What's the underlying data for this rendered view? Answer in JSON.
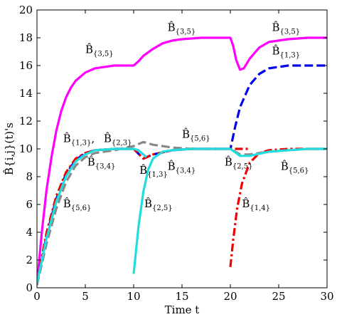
{
  "chart_data": {
    "type": "line",
    "title": "",
    "xlabel": "Time t",
    "ylabel": "B̂{i,j}(t)'s",
    "xlim": [
      0,
      30
    ],
    "ylim": [
      0,
      20
    ],
    "x_ticks": [
      0,
      5,
      10,
      15,
      20,
      25,
      30
    ],
    "y_ticks": [
      0,
      2,
      4,
      6,
      8,
      10,
      12,
      14,
      16,
      18,
      20
    ],
    "grid": false,
    "legend": "none",
    "series": [
      {
        "color": "#ff00ff",
        "style": "solid",
        "x": [
          0,
          0.5,
          1,
          1.5,
          2,
          2.5,
          3,
          3.5,
          4,
          5,
          6,
          7,
          8,
          9,
          10,
          10.5,
          11,
          12,
          13,
          14,
          15,
          17,
          19,
          20,
          20.3,
          20.6,
          21,
          21.4,
          22,
          23,
          24,
          26,
          28,
          30
        ],
        "y": [
          0.2,
          4.0,
          7.1,
          9.4,
          11.3,
          12.7,
          13.7,
          14.4,
          14.9,
          15.5,
          15.8,
          15.9,
          16.0,
          16.0,
          16.0,
          16.3,
          16.7,
          17.2,
          17.6,
          17.8,
          17.9,
          18.0,
          18.0,
          18.0,
          17.4,
          16.4,
          15.7,
          15.8,
          16.5,
          17.3,
          17.7,
          17.9,
          18.0,
          18.0
        ]
      },
      {
        "color": "#0000ee",
        "style": "dashed",
        "x": [
          0,
          1,
          2,
          3,
          4,
          5,
          6,
          8,
          10,
          11,
          12,
          14,
          16,
          18,
          20,
          20.01,
          20.5,
          21,
          22,
          23,
          24,
          26,
          28,
          30
        ],
        "y": [
          0.2,
          3.8,
          6.4,
          8.2,
          9.2,
          9.7,
          9.9,
          10.0,
          10.0,
          9.3,
          9.6,
          9.9,
          10.0,
          10.0,
          10.0,
          10.0,
          11.6,
          13.0,
          14.6,
          15.4,
          15.8,
          16.0,
          16.0,
          16.0
        ]
      },
      {
        "color": "#ee0000",
        "style": "dashdot",
        "x": [
          0,
          1,
          2,
          3,
          4,
          5,
          6,
          8,
          10,
          11,
          12,
          14,
          16,
          18,
          20,
          22
        ],
        "y": [
          0.4,
          4.0,
          6.6,
          8.3,
          9.3,
          9.7,
          9.9,
          10.0,
          10.0,
          9.3,
          9.6,
          9.9,
          10.0,
          10.0,
          10.0,
          10.0
        ]
      },
      {
        "color": "#ee0000",
        "style": "dashdot",
        "x": [
          20,
          20.3,
          20.7,
          21.2,
          22,
          23,
          24,
          26,
          28,
          30
        ],
        "y": [
          1.5,
          3.5,
          5.7,
          7.5,
          9.0,
          9.7,
          9.9,
          10.0,
          10.0,
          10.0
        ]
      },
      {
        "color": "#888888",
        "style": "dashed",
        "x": [
          0,
          1,
          2,
          3,
          4,
          5,
          6,
          8,
          10,
          11,
          12,
          14,
          16,
          18,
          20,
          20.5,
          21,
          22,
          24,
          26,
          28,
          30
        ],
        "y": [
          0.2,
          3.2,
          5.7,
          7.6,
          8.8,
          9.4,
          9.7,
          9.9,
          10.2,
          10.5,
          10.3,
          10.1,
          10.0,
          10.0,
          10.0,
          9.8,
          9.6,
          9.6,
          9.8,
          9.9,
          10.0,
          10.0
        ]
      },
      {
        "color": "#22dddd",
        "style": "solid",
        "x": [
          0,
          1,
          2,
          3,
          4,
          5,
          6,
          8,
          10,
          10.5,
          11,
          11.3
        ],
        "y": [
          0.3,
          3.6,
          6.2,
          8.0,
          9.1,
          9.6,
          9.9,
          10.0,
          10.0,
          9.9,
          9.6,
          9.4
        ]
      },
      {
        "color": "#22dddd",
        "style": "solid",
        "x": [
          10,
          10.5,
          11,
          11.5,
          12,
          13,
          14,
          16,
          18,
          20,
          21,
          22,
          24,
          26,
          28,
          30
        ],
        "y": [
          1.0,
          4.4,
          6.9,
          8.5,
          9.3,
          9.8,
          9.9,
          10.0,
          10.0,
          10.0,
          9.5,
          9.5,
          9.8,
          9.9,
          10.0,
          10.0
        ]
      }
    ],
    "annotations": [
      {
        "base": "B̂",
        "sub": "{3,5}",
        "x": 5,
        "y": 16.9
      },
      {
        "base": "B̂",
        "sub": "{3,5}",
        "x": 13.5,
        "y": 18.5
      },
      {
        "base": "B̂",
        "sub": "{3,5}",
        "x": 24.3,
        "y": 18.5
      },
      {
        "base": "B̂",
        "sub": "{1,3}",
        "x": 24.3,
        "y": 16.8
      },
      {
        "base": "B̂",
        "sub": "{1,3}",
        "x": 2.7,
        "y": 10.5,
        "suffix": ","
      },
      {
        "base": "B̂",
        "sub": "{2,3}",
        "x": 6.9,
        "y": 10.5
      },
      {
        "base": "B̂",
        "sub": "{5,6}",
        "x": 15,
        "y": 10.8
      },
      {
        "base": "B̂",
        "sub": "{3,4}",
        "x": 5.2,
        "y": 8.8
      },
      {
        "base": "B̂",
        "sub": "{1,3}",
        "x": 10.6,
        "y": 8.2
      },
      {
        "base": "B̂",
        "sub": "{3,4}",
        "x": 13.5,
        "y": 8.5
      },
      {
        "base": "B̂",
        "sub": "{2,5}",
        "x": 19.4,
        "y": 8.8
      },
      {
        "base": "B̂",
        "sub": "{5,6}",
        "x": 25.2,
        "y": 8.5
      },
      {
        "base": "B̂",
        "sub": "{5,6}",
        "x": 2.7,
        "y": 5.8
      },
      {
        "base": "B̂",
        "sub": "{2,5}",
        "x": 11.1,
        "y": 5.8
      },
      {
        "base": "B̂",
        "sub": "{1,4}",
        "x": 21.2,
        "y": 5.8
      }
    ]
  }
}
